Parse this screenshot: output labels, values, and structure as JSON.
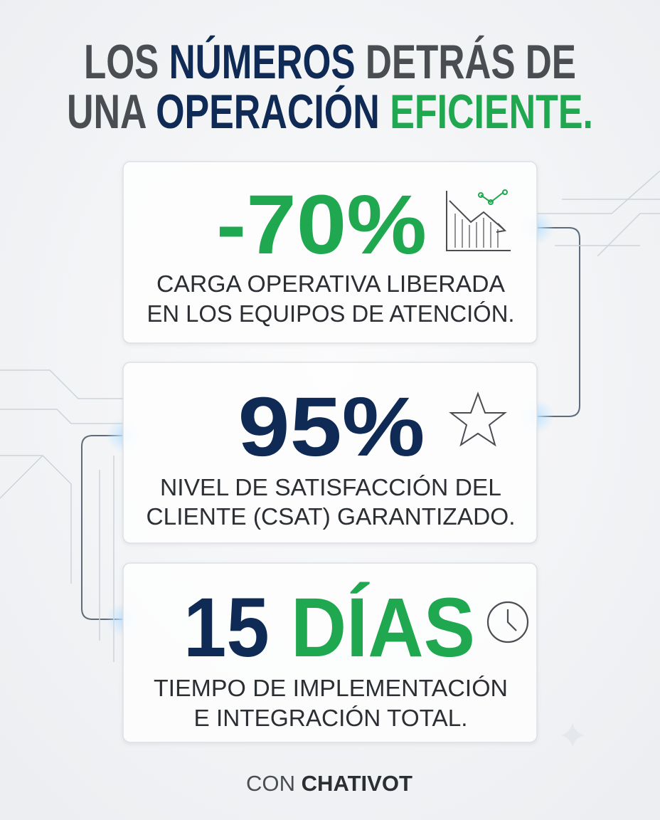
{
  "title": {
    "lines": [
      [
        {
          "text": "LOS",
          "color": "#4a4d52"
        },
        {
          "text": "NÚMEROS",
          "color": "#0f2a55"
        },
        {
          "text": "DETRÁS",
          "color": "#4a4d52"
        },
        {
          "text": "DE",
          "color": "#4a4d52"
        }
      ],
      [
        {
          "text": "UNA",
          "color": "#4a4d52"
        },
        {
          "text": "OPERACIÓN",
          "color": "#0f2a55"
        },
        {
          "text": "EFICIENTE.",
          "color": "#1fa84f"
        }
      ]
    ]
  },
  "cards": [
    {
      "stat": [
        {
          "text": "-70%",
          "color": "#1fa84f"
        }
      ],
      "description": [
        "CARGA OPERATIVA LIBERADA",
        "EN LOS EQUIPOS DE ATENCIÓN."
      ]
    },
    {
      "stat": [
        {
          "text": "95%",
          "color": "#0f2a55"
        }
      ],
      "description": [
        "NIVEL DE SATISFACCIÓN DEL",
        "CLIENTE (CSAT) GARANTIZADO."
      ]
    },
    {
      "stat": [
        {
          "text": "15",
          "color": "#0f2a55"
        },
        {
          "text": "DÍAS",
          "color": "#1fa84f"
        }
      ],
      "description": [
        "TIEMPO DE IMPLEMENTACIÓN",
        "E INTEGRACIÓN TOTAL."
      ]
    }
  ],
  "footer": [
    {
      "text": "CON",
      "color": "#4a4d52"
    },
    {
      "text": "CHATIVOT",
      "color": "#2b2e33"
    }
  ]
}
